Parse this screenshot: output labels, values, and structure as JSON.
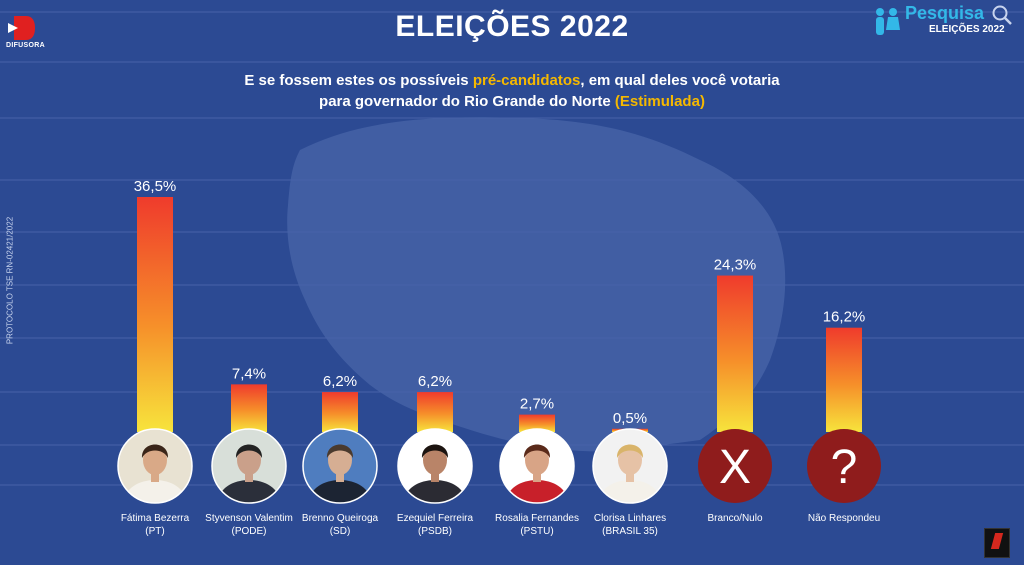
{
  "header": {
    "title": "ELEIÇÕES 2022",
    "subtitle_part1": "E se fossem estes os possíveis ",
    "subtitle_highlight1": "pré-candidatos",
    "subtitle_part2": ", em qual deles você votaria",
    "subtitle_line2": "para governador do Rio Grande do Norte ",
    "subtitle_highlight2": "(Estimulada)"
  },
  "logos": {
    "left_brand": "DIFUSORA",
    "right_brand": "Pesquisa",
    "right_sub": "ELEIÇÕES 2022"
  },
  "protocol": "PROTOCOLO TSE RN-02421/2022",
  "colors": {
    "background": "#2c4a93",
    "bar_top": "#ef3b2c",
    "bar_bottom": "#f7e43c",
    "gridline": "#4763a8",
    "special_circle": "#8f1c1c",
    "highlight": "#f5b800"
  },
  "chart_data": {
    "type": "bar",
    "title": "E se fossem estes os possíveis pré-candidatos, em qual deles você votaria para governador do Rio Grande do Norte (Estimulada)",
    "xlabel": "",
    "ylabel": "",
    "ylim": [
      0,
      40
    ],
    "categories": [
      {
        "name": "Fátima Bezerra",
        "party": "(PT)",
        "value": 36.5,
        "label": "36,5%",
        "avatar": "candidate-photo",
        "skin": "#d9a987",
        "hair": "#3a2518",
        "clothes": "#f4f1ea",
        "bg": "#e8e2d2"
      },
      {
        "name": "Styvenson Valentim",
        "party": "(PODE)",
        "value": 7.4,
        "label": "7,4%",
        "avatar": "candidate-photo",
        "skin": "#caa08a",
        "hair": "#222222",
        "clothes": "#2b2f3a",
        "bg": "#d8dfd9"
      },
      {
        "name": "Brenno Queiroga",
        "party": "(SD)",
        "value": 6.2,
        "label": "6,2%",
        "avatar": "candidate-photo",
        "skin": "#d6ae93",
        "hair": "#4a3a2e",
        "clothes": "#1c2433",
        "bg": "#4f7dbf"
      },
      {
        "name": "Ezequiel Ferreira",
        "party": "(PSDB)",
        "value": 6.2,
        "label": "6,2%",
        "avatar": "candidate-photo",
        "skin": "#b98468",
        "hair": "#1c1410",
        "clothes": "#2b2b33",
        "bg": "#ffffff"
      },
      {
        "name": "Rosalia Fernandes",
        "party": "(PSTU)",
        "value": 2.7,
        "label": "2,7%",
        "avatar": "candidate-photo",
        "skin": "#d8a486",
        "hair": "#5a2a1a",
        "clothes": "#c8202a",
        "bg": "#ffffff"
      },
      {
        "name": "Clorisa Linhares",
        "party": "(BRASIL 35)",
        "value": 0.5,
        "label": "0,5%",
        "avatar": "candidate-photo",
        "skin": "#e6c2a6",
        "hair": "#d9b46a",
        "clothes": "#f4f1ea",
        "bg": "#f2f2f2"
      },
      {
        "name": "Branco/Nulo",
        "party": "",
        "value": 24.3,
        "label": "24,3%",
        "avatar": "symbol",
        "symbol": "X"
      },
      {
        "name": "Não Respondeu",
        "party": "",
        "value": 16.2,
        "label": "16,2%",
        "avatar": "symbol",
        "symbol": "?"
      }
    ]
  }
}
